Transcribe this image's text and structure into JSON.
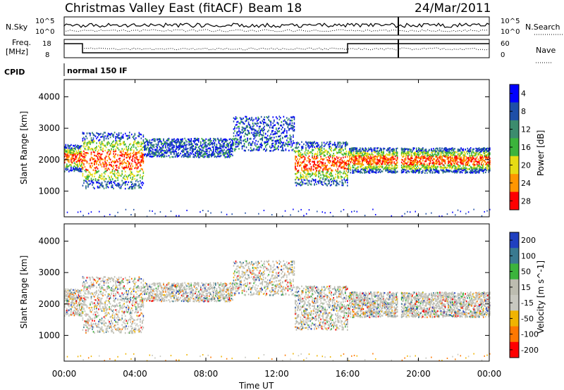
{
  "header": {
    "station": "Christmas Valley East (fitACF)",
    "beam": "Beam 18",
    "date": "24/Mar/2011"
  },
  "top_panels": {
    "noise_left_label": "N.Sky",
    "noise_right_label": "N.Search",
    "noise_ticks": [
      "10^5",
      "10^0"
    ],
    "freq_left_label_1": "Freq.",
    "freq_left_label_2": "[MHz]",
    "freq_ticks": [
      "18",
      "8"
    ],
    "nave_label": "Nave",
    "nave_ticks": [
      "60",
      "0"
    ],
    "cpid_label": "CPID",
    "cpid_value": "normal 150 IF"
  },
  "chart_data": [
    {
      "type": "heatmap",
      "name": "power",
      "xlabel": "Time UT",
      "ylabel": "Slant Range [km]",
      "xlim": [
        0,
        24
      ],
      "ylim": [
        180,
        4550
      ],
      "xticks": [
        "00:00",
        "04:00",
        "08:00",
        "12:00",
        "16:00",
        "20:00",
        "00:00"
      ],
      "yticks": [
        1000,
        2000,
        3000,
        4000
      ],
      "colorbar": {
        "label": "Power [dB]",
        "ticks": [
          "4",
          "8",
          "12",
          "16",
          "20",
          "24",
          "28"
        ],
        "colors": [
          "#0000ff",
          "#1e4fa8",
          "#3c8c6e",
          "#3cb43c",
          "#e6dc14",
          "#ff9600",
          "#ff0000"
        ]
      },
      "bands": [
        {
          "t": [
            0.0,
            1.0
          ],
          "r": [
            1650,
            2500
          ],
          "level": "high"
        },
        {
          "t": [
            1.0,
            4.5
          ],
          "r": [
            1100,
            2900
          ],
          "level": "high"
        },
        {
          "t": [
            4.5,
            9.5
          ],
          "r": [
            2100,
            2700
          ],
          "level": "low"
        },
        {
          "t": [
            9.5,
            13.0
          ],
          "r": [
            2300,
            3400
          ],
          "level": "low"
        },
        {
          "t": [
            13.0,
            16.0
          ],
          "r": [
            1200,
            2600
          ],
          "level": "high"
        },
        {
          "t": [
            16.0,
            24.0
          ],
          "r": [
            1600,
            2400
          ],
          "level": "high"
        }
      ]
    },
    {
      "type": "heatmap",
      "name": "velocity",
      "xlabel": "Time UT",
      "ylabel": "Slant Range [km]",
      "xlim": [
        0,
        24
      ],
      "ylim": [
        180,
        4550
      ],
      "xticks": [
        "00:00",
        "04:00",
        "08:00",
        "12:00",
        "16:00",
        "20:00",
        "00:00"
      ],
      "yticks": [
        1000,
        2000,
        3000,
        4000
      ],
      "colorbar": {
        "label": "Velocity [m s^-1]",
        "ticks": [
          "200",
          "100",
          "50",
          "15",
          "-15",
          "-50",
          "-100",
          "-200"
        ],
        "colors": [
          "#2040c0",
          "#3a7a90",
          "#3cb43c",
          "#bcbcb0",
          "#c8c8c0",
          "#f0b400",
          "#ff7800",
          "#ff0000"
        ]
      }
    }
  ]
}
